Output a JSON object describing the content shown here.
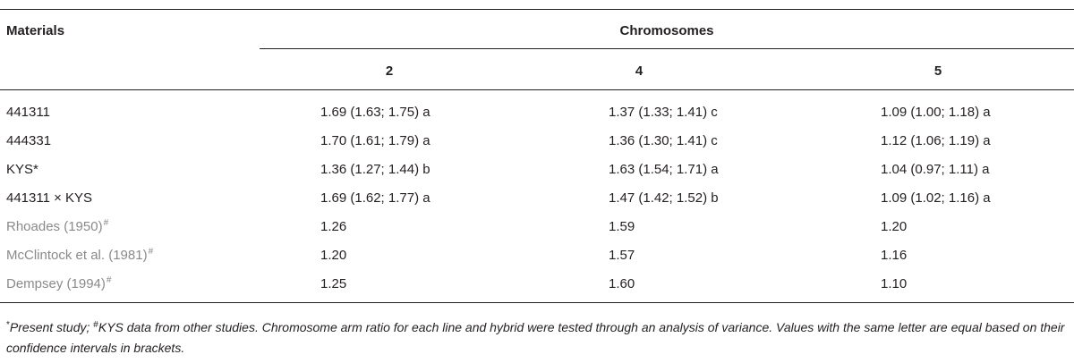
{
  "table": {
    "header": {
      "materials": "Materials",
      "group": "Chromosomes",
      "columns": [
        "2",
        "4",
        "5"
      ]
    },
    "rows": [
      {
        "material": "441311",
        "sup": "",
        "values": [
          "1.69 (1.63; 1.75) a",
          "1.37 (1.33; 1.41) c",
          "1.09 (1.00; 1.18) a"
        ],
        "grey": false
      },
      {
        "material": "444331",
        "sup": "",
        "values": [
          "1.70 (1.61; 1.79) a",
          "1.36 (1.30; 1.41) c",
          "1.12 (1.06; 1.19) a"
        ],
        "grey": false
      },
      {
        "material": "KYS*",
        "sup": "",
        "values": [
          "1.36 (1.27; 1.44) b",
          "1.63 (1.54; 1.71) a",
          "1.04 (0.97; 1.11) a"
        ],
        "grey": false
      },
      {
        "material": "441311 × KYS",
        "sup": "",
        "values": [
          "1.69 (1.62; 1.77) a",
          "1.47 (1.42; 1.52) b",
          "1.09 (1.02; 1.16) a"
        ],
        "grey": false
      },
      {
        "material": "Rhoades (1950)",
        "sup": "#",
        "values": [
          "1.26",
          "1.59",
          "1.20"
        ],
        "grey": true
      },
      {
        "material": "McClintock et al. (1981)",
        "sup": "#",
        "values": [
          "1.20",
          "1.57",
          "1.16"
        ],
        "grey": true
      },
      {
        "material": "Dempsey (1994)",
        "sup": "#",
        "values": [
          "1.25",
          "1.60",
          "1.10"
        ],
        "grey": true
      }
    ]
  },
  "footnote": {
    "mark1": "*",
    "text1": "Present study; ",
    "mark2": "#",
    "text2": "KYS data from other studies. Chromosome arm ratio for each line and hybrid were tested through an analysis of variance. Values with the same letter are equal based on their confidence intervals in brackets."
  }
}
